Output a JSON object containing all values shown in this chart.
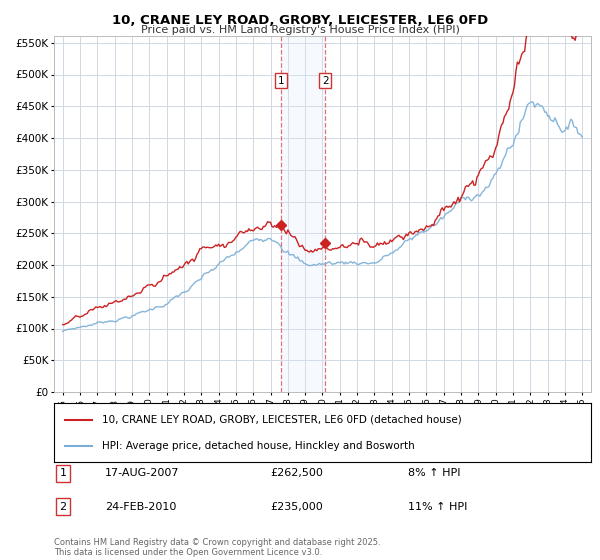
{
  "title": "10, CRANE LEY ROAD, GROBY, LEICESTER, LE6 0FD",
  "subtitle": "Price paid vs. HM Land Registry's House Price Index (HPI)",
  "background_color": "#ffffff",
  "grid_color": "#d0d8e4",
  "hpi_color": "#7aaed6",
  "price_color": "#cc2222",
  "vline_color": "#dd6666",
  "span_color": "#ddeeff",
  "ylim": [
    0,
    560000
  ],
  "yticks": [
    0,
    50000,
    100000,
    150000,
    200000,
    250000,
    300000,
    350000,
    400000,
    450000,
    500000,
    550000
  ],
  "ytick_labels": [
    "£0",
    "£50K",
    "£100K",
    "£150K",
    "£200K",
    "£250K",
    "£300K",
    "£350K",
    "£400K",
    "£450K",
    "£500K",
    "£550K"
  ],
  "sale1_year": 2007.62,
  "sale1_price": 262500,
  "sale2_year": 2010.15,
  "sale2_price": 235000,
  "legend_line1": "10, CRANE LEY ROAD, GROBY, LEICESTER, LE6 0FD (detached house)",
  "legend_line2": "HPI: Average price, detached house, Hinckley and Bosworth",
  "footer": "Contains HM Land Registry data © Crown copyright and database right 2025.\nThis data is licensed under the Open Government Licence v3.0.",
  "xticks": [
    1995,
    1996,
    1997,
    1998,
    1999,
    2000,
    2001,
    2002,
    2003,
    2004,
    2005,
    2006,
    2007,
    2008,
    2009,
    2010,
    2011,
    2012,
    2013,
    2014,
    2015,
    2016,
    2017,
    2018,
    2019,
    2020,
    2021,
    2022,
    2023,
    2024,
    2025
  ]
}
